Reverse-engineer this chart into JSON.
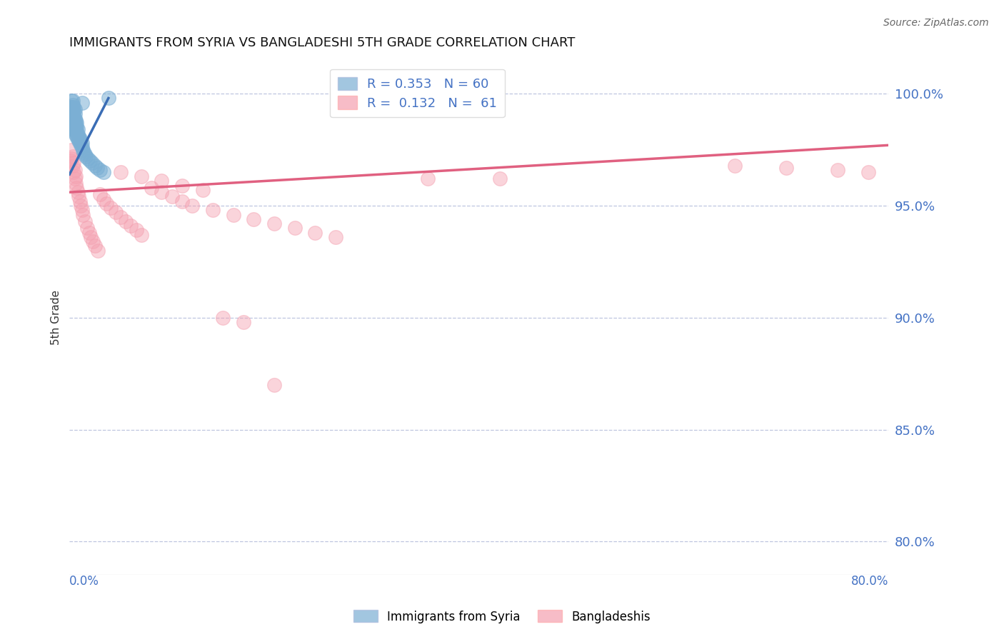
{
  "title": "IMMIGRANTS FROM SYRIA VS BANGLADESHI 5TH GRADE CORRELATION CHART",
  "source": "Source: ZipAtlas.com",
  "ylabel": "5th Grade",
  "ytick_labels": [
    "100.0%",
    "95.0%",
    "90.0%",
    "85.0%",
    "80.0%"
  ],
  "ytick_values": [
    1.0,
    0.95,
    0.9,
    0.85,
    0.8
  ],
  "xmin": 0.0,
  "xmax": 0.8,
  "ymin": 0.785,
  "ymax": 1.015,
  "R_blue": 0.353,
  "N_blue": 60,
  "R_pink": 0.132,
  "N_pink": 61,
  "color_blue": "#7BAFD4",
  "color_pink": "#F4A0B0",
  "color_blue_line": "#3A6DB5",
  "color_pink_line": "#E06080",
  "color_grid": "#B0B8D8",
  "color_axis_label": "#4472C4",
  "legend_blue_label": "Immigrants from Syria",
  "legend_pink_label": "Bangladeshis",
  "blue_x": [
    0.001,
    0.001,
    0.001,
    0.001,
    0.002,
    0.002,
    0.002,
    0.002,
    0.002,
    0.003,
    0.003,
    0.003,
    0.003,
    0.003,
    0.003,
    0.003,
    0.004,
    0.004,
    0.004,
    0.004,
    0.004,
    0.004,
    0.005,
    0.005,
    0.005,
    0.005,
    0.005,
    0.005,
    0.006,
    0.006,
    0.006,
    0.006,
    0.007,
    0.007,
    0.007,
    0.007,
    0.008,
    0.008,
    0.008,
    0.009,
    0.009,
    0.01,
    0.01,
    0.011,
    0.011,
    0.012,
    0.012,
    0.013,
    0.014,
    0.015,
    0.016,
    0.018,
    0.02,
    0.022,
    0.025,
    0.027,
    0.03,
    0.033,
    0.012,
    0.038
  ],
  "blue_y": [
    0.988,
    0.99,
    0.992,
    0.994,
    0.988,
    0.99,
    0.992,
    0.994,
    0.997,
    0.985,
    0.987,
    0.989,
    0.991,
    0.993,
    0.995,
    0.997,
    0.984,
    0.986,
    0.988,
    0.99,
    0.992,
    0.994,
    0.983,
    0.985,
    0.987,
    0.989,
    0.991,
    0.993,
    0.982,
    0.984,
    0.986,
    0.988,
    0.981,
    0.983,
    0.985,
    0.987,
    0.98,
    0.982,
    0.984,
    0.979,
    0.981,
    0.978,
    0.98,
    0.977,
    0.979,
    0.976,
    0.978,
    0.975,
    0.974,
    0.973,
    0.972,
    0.971,
    0.97,
    0.969,
    0.968,
    0.967,
    0.966,
    0.965,
    0.996,
    0.998
  ],
  "pink_x": [
    0.001,
    0.002,
    0.002,
    0.003,
    0.003,
    0.004,
    0.004,
    0.005,
    0.005,
    0.006,
    0.006,
    0.007,
    0.008,
    0.009,
    0.01,
    0.011,
    0.012,
    0.013,
    0.015,
    0.017,
    0.019,
    0.021,
    0.023,
    0.025,
    0.028,
    0.03,
    0.033,
    0.036,
    0.04,
    0.045,
    0.05,
    0.055,
    0.06,
    0.065,
    0.07,
    0.08,
    0.09,
    0.1,
    0.11,
    0.12,
    0.14,
    0.16,
    0.18,
    0.2,
    0.22,
    0.24,
    0.26,
    0.05,
    0.07,
    0.09,
    0.11,
    0.13,
    0.15,
    0.17,
    0.35,
    0.42,
    0.65,
    0.7,
    0.75,
    0.78,
    0.2
  ],
  "pink_y": [
    0.97,
    0.971,
    0.975,
    0.968,
    0.972,
    0.965,
    0.969,
    0.962,
    0.966,
    0.96,
    0.963,
    0.958,
    0.956,
    0.954,
    0.952,
    0.95,
    0.948,
    0.946,
    0.943,
    0.94,
    0.938,
    0.936,
    0.934,
    0.932,
    0.93,
    0.955,
    0.953,
    0.951,
    0.949,
    0.947,
    0.945,
    0.943,
    0.941,
    0.939,
    0.937,
    0.958,
    0.956,
    0.954,
    0.952,
    0.95,
    0.948,
    0.946,
    0.944,
    0.942,
    0.94,
    0.938,
    0.936,
    0.965,
    0.963,
    0.961,
    0.959,
    0.957,
    0.9,
    0.898,
    0.962,
    0.962,
    0.968,
    0.967,
    0.966,
    0.965,
    0.87
  ],
  "blue_line_x": [
    0.0,
    0.038
  ],
  "blue_line_y": [
    0.964,
    0.998
  ],
  "pink_line_x": [
    0.0,
    0.8
  ],
  "pink_line_y": [
    0.956,
    0.977
  ]
}
